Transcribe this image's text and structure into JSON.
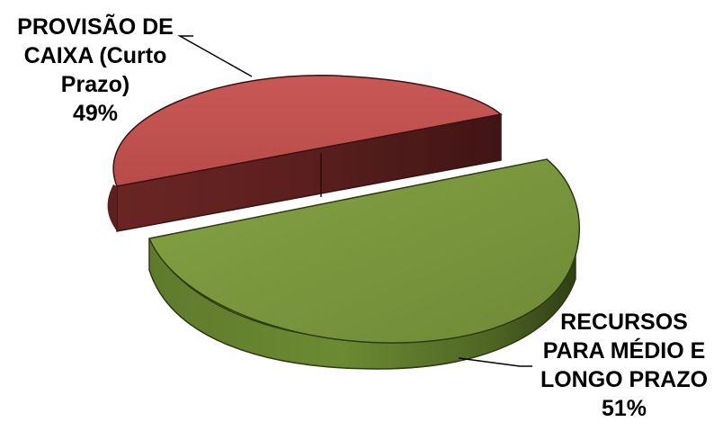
{
  "chart_data": {
    "type": "pie",
    "style": "3d-exploded",
    "title": "",
    "slices": [
      {
        "lines": [
          "PROVISÃO DE",
          "CAIXA (Curto",
          "Prazo)"
        ],
        "percent_label": "49%",
        "value": 49,
        "color": "#C0504D"
      },
      {
        "lines": [
          "RECURSOS",
          "PARA MÉDIO E",
          "LONGO PRAZO"
        ],
        "percent_label": "51%",
        "value": 51,
        "color": "#77933C"
      }
    ],
    "legend": "none"
  }
}
